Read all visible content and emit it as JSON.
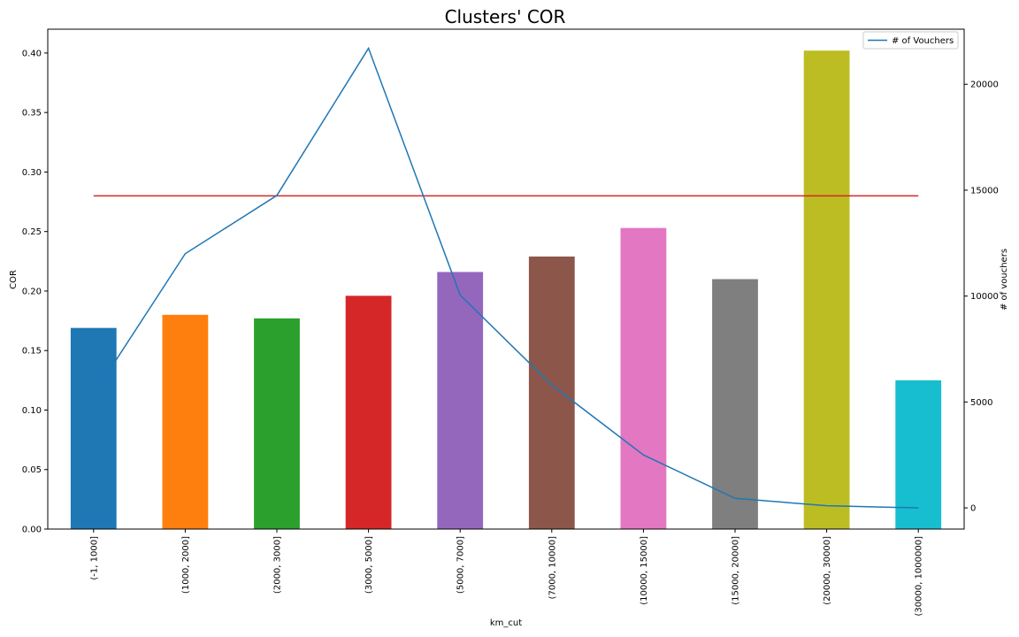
{
  "chart_data": {
    "type": "bar",
    "title": "Clusters' COR",
    "xlabel": "km_cut",
    "ylabel": "COR",
    "y2label": "# of vouchers",
    "categories": [
      "(-1, 1000]",
      "(1000, 2000]",
      "(2000, 3000]",
      "(3000, 5000]",
      "(5000, 7000]",
      "(7000, 10000]",
      "(10000, 15000]",
      "(15000, 20000]",
      "(20000, 30000]",
      "(30000, 1000000]"
    ],
    "bar_values": [
      0.169,
      0.18,
      0.177,
      0.196,
      0.216,
      0.229,
      0.253,
      0.21,
      0.402,
      0.125
    ],
    "bar_colors": [
      "#1f77b4",
      "#ff7f0e",
      "#2ca02c",
      "#d62728",
      "#9467bd",
      "#8c564b",
      "#e377c2",
      "#7f7f7f",
      "#bcbd22",
      "#17becf"
    ],
    "ylim": [
      0,
      0.42
    ],
    "yticks": [
      "0.00",
      "0.05",
      "0.10",
      "0.15",
      "0.20",
      "0.25",
      "0.30",
      "0.35",
      "0.40"
    ],
    "reference_line": {
      "value": 0.28,
      "color": "#d62728"
    },
    "line_series": {
      "name": "# of Vouchers",
      "color": "#1f77b4",
      "values": [
        5350,
        12000,
        14750,
        21700,
        10050,
        5800,
        2500,
        450,
        100,
        0
      ],
      "axis": "right"
    },
    "y2lim": [
      -1000,
      22600
    ],
    "y2ticks": [
      "0",
      "5000",
      "10000",
      "15000",
      "20000"
    ],
    "legend_position": "top-right",
    "grid": false
  }
}
